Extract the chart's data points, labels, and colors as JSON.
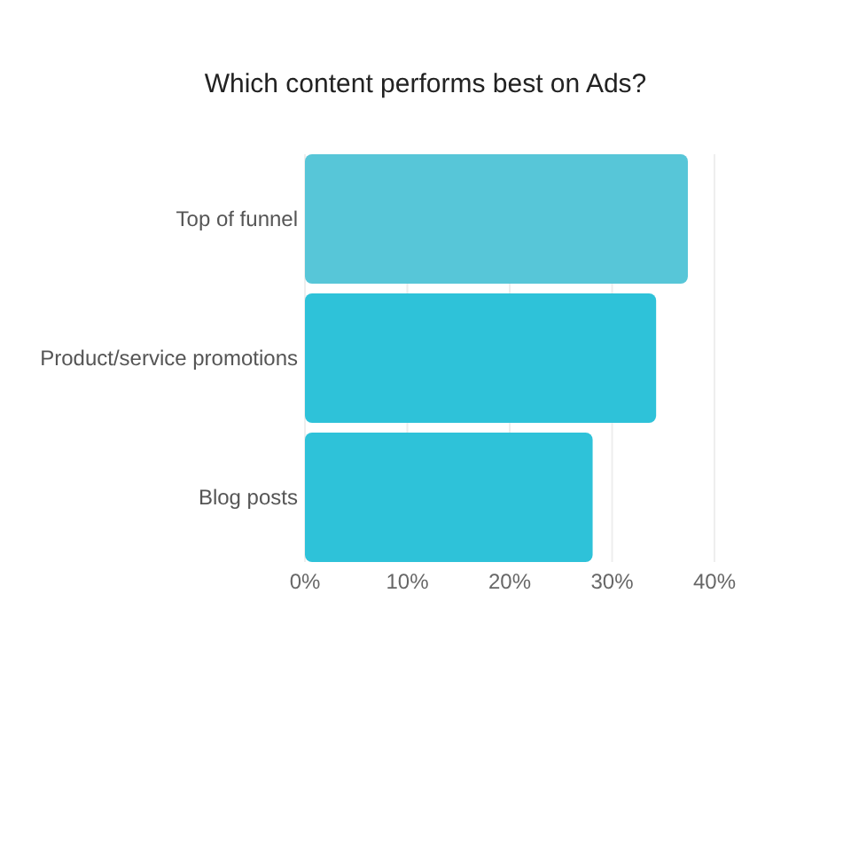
{
  "chart_data": {
    "type": "bar",
    "orientation": "horizontal",
    "title": "Which content performs best on Ads?",
    "categories": [
      "Top of funnel",
      "Product/service promotions",
      "Blog posts"
    ],
    "values": [
      37.4,
      34.3,
      28.1
    ],
    "colors": [
      "#57c6d8",
      "#2ec2d9",
      "#2ec2d9"
    ],
    "xlim": [
      0,
      40
    ],
    "xticks": [
      {
        "value": 0,
        "label": "0%"
      },
      {
        "value": 10,
        "label": "10%"
      },
      {
        "value": 20,
        "label": "20%"
      },
      {
        "value": 30,
        "label": "30%"
      },
      {
        "value": 40,
        "label": "40%"
      }
    ],
    "grid": "x"
  }
}
